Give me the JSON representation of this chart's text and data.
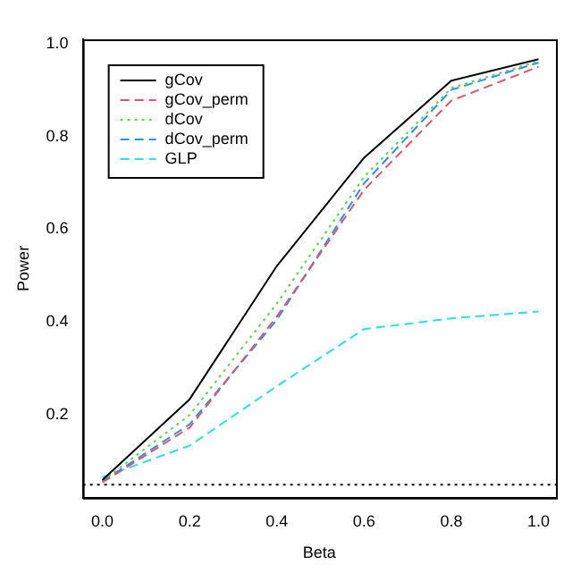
{
  "chart_data": {
    "type": "line",
    "xlabel": "Beta",
    "ylabel": "Power",
    "x": [
      0,
      0.2,
      0.4,
      0.6,
      0.8,
      1.0
    ],
    "series": [
      {
        "name": "gCov",
        "color": "#000000",
        "line_style": "solid",
        "values": [
          0.06,
          0.234,
          0.521,
          0.754,
          0.92,
          0.966
        ]
      },
      {
        "name": "gCov_perm",
        "color": "#df536b",
        "line_style": "dashed",
        "values": [
          0.055,
          0.173,
          0.412,
          0.685,
          0.877,
          0.95
        ]
      },
      {
        "name": "dCov",
        "color": "#61d04f",
        "line_style": "dotted",
        "values": [
          0.058,
          0.2,
          0.44,
          0.713,
          0.904,
          0.962
        ]
      },
      {
        "name": "dCov_perm",
        "color": "#2297e6",
        "line_style": "dashed",
        "values": [
          0.057,
          0.18,
          0.405,
          0.699,
          0.9,
          0.959
        ]
      },
      {
        "name": "GLP",
        "color": "#28e2e5",
        "line_style": "dashed",
        "values": [
          0.066,
          0.134,
          0.262,
          0.385,
          0.408,
          0.423
        ]
      }
    ],
    "xlim": [
      -0.045,
      1.04
    ],
    "ylim": [
      0.022,
      1.009
    ],
    "xticks": [
      {
        "value": 0,
        "label": "0.0"
      },
      0.2,
      0.4,
      0.6,
      0.8,
      {
        "value": 1,
        "label": "1.0"
      }
    ],
    "yticks": [
      0.2,
      0.4,
      0.6,
      0.8,
      {
        "value": 1,
        "label": "1.0"
      }
    ],
    "ref_lines": [
      {
        "axis": "y",
        "value": 0.05,
        "label": null,
        "color": "#000000",
        "line_style": "dotted"
      }
    ],
    "grid": false,
    "legend": "top left",
    "marker": "none"
  }
}
